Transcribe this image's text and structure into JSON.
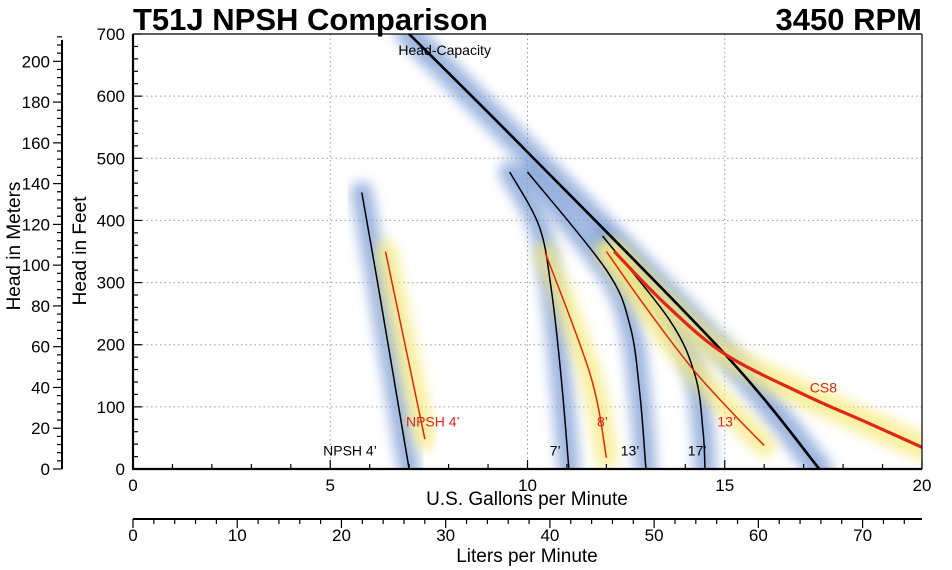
{
  "chart_data": {
    "type": "line",
    "title": "T51J NPSH Comparison",
    "subtitle": "3450 RPM",
    "xlabel": "U.S. Gallons per Minute",
    "ylabel": "Head in Feet",
    "xlim": [
      0,
      20
    ],
    "ylim": [
      0,
      700
    ],
    "x_ticks": [
      "0",
      "5",
      "10",
      "15",
      "20"
    ],
    "y_ticks": [
      "0",
      "100",
      "200",
      "300",
      "400",
      "500",
      "600",
      "700"
    ],
    "secondary_x": {
      "label": "Liters per Minute",
      "lim": [
        0,
        75.7
      ],
      "ticks": [
        "0",
        "10",
        "20",
        "30",
        "40",
        "50",
        "60",
        "70"
      ]
    },
    "secondary_y": {
      "label": "Head in Meters",
      "lim": [
        0,
        213.4
      ],
      "ticks": [
        "0",
        "20",
        "40",
        "60",
        "80",
        "100",
        "120",
        "140",
        "160",
        "180",
        "200"
      ]
    },
    "grid": true,
    "series": [
      {
        "name": "Head-Capacity",
        "color": "#000000",
        "glow": "#7f9fd6",
        "width": 2.6,
        "label_gpm": 7.9,
        "label_ft": 666,
        "points": [
          [
            7.0,
            700
          ],
          [
            10,
            510
          ],
          [
            15,
            185
          ],
          [
            17.4,
            0
          ]
        ]
      },
      {
        "name": "NPSH 4’",
        "color": "#000000",
        "glow": "#7f9fd6",
        "width": 1.5,
        "label_gpm": 5.5,
        "label_ft": 22,
        "points": [
          [
            5.8,
            445
          ],
          [
            6.2,
            300
          ],
          [
            6.6,
            150
          ],
          [
            7.0,
            0
          ]
        ]
      },
      {
        "name": "7’",
        "color": "#000000",
        "glow": "#7f9fd6",
        "width": 1.5,
        "label_gpm": 10.7,
        "label_ft": 22,
        "points": [
          [
            9.55,
            478
          ],
          [
            10.3,
            390
          ],
          [
            10.6,
            290
          ],
          [
            10.85,
            150
          ],
          [
            11.05,
            0
          ]
        ]
      },
      {
        "name": "13’",
        "color": "#000000",
        "glow": "#7f9fd6",
        "width": 1.5,
        "label_gpm": 12.6,
        "label_ft": 22,
        "points": [
          [
            10.0,
            478
          ],
          [
            12.0,
            320
          ],
          [
            12.6,
            230
          ],
          [
            12.85,
            120
          ],
          [
            13.0,
            0
          ]
        ]
      },
      {
        "name": "17’",
        "color": "#000000",
        "glow": "#7f9fd6",
        "width": 1.5,
        "label_gpm": 14.3,
        "label_ft": 22,
        "points": [
          [
            11.9,
            375
          ],
          [
            13.6,
            240
          ],
          [
            14.25,
            150
          ],
          [
            14.45,
            60
          ],
          [
            14.5,
            0
          ]
        ]
      },
      {
        "name": "NPSH 4’",
        "color": "#e0251b",
        "glow": "#f5ea7d",
        "width": 1.5,
        "label_gpm": 7.6,
        "label_ft": 68,
        "points": [
          [
            6.4,
            350
          ],
          [
            7.4,
            48
          ]
        ]
      },
      {
        "name": "8’",
        "color": "#e0251b",
        "glow": "#f5ea7d",
        "width": 1.5,
        "label_gpm": 11.9,
        "label_ft": 68,
        "points": [
          [
            10.45,
            348
          ],
          [
            11.6,
            150
          ],
          [
            12.0,
            18
          ]
        ]
      },
      {
        "name": "13’",
        "color": "#e0251b",
        "glow": "#f5ea7d",
        "width": 1.5,
        "label_gpm": 15.05,
        "label_ft": 68,
        "points": [
          [
            12.0,
            350
          ],
          [
            13.0,
            260
          ],
          [
            14.2,
            160
          ],
          [
            15.2,
            90
          ],
          [
            16.0,
            38
          ]
        ]
      },
      {
        "name": "CS8",
        "color": "#e0251b",
        "glow": "#f5ea7d",
        "width": 3.2,
        "label_gpm": 17.5,
        "label_ft": 123,
        "points": [
          [
            12.2,
            350
          ],
          [
            13.5,
            265
          ],
          [
            15.0,
            185
          ],
          [
            17.0,
            120
          ],
          [
            18.6,
            75
          ],
          [
            20.0,
            35
          ]
        ]
      }
    ]
  }
}
